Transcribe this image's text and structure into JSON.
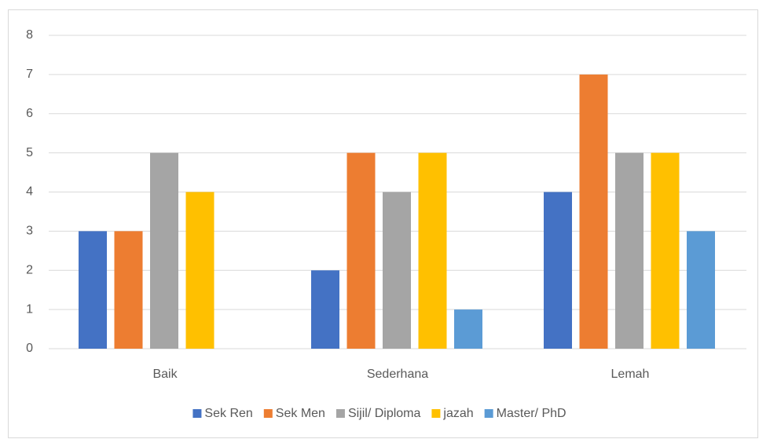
{
  "chart_data": {
    "type": "bar",
    "categories": [
      "Baik",
      "Sederhana",
      "Lemah"
    ],
    "series": [
      {
        "name": "Sek Ren",
        "color": "#4472c4",
        "values": [
          3,
          2,
          4
        ]
      },
      {
        "name": "Sek Men",
        "color": "#ed7d31",
        "values": [
          3,
          5,
          7
        ]
      },
      {
        "name": "Sijil/ Diploma",
        "color": "#a5a5a5",
        "values": [
          5,
          4,
          5
        ]
      },
      {
        "name": "jazah",
        "color": "#ffc000",
        "values": [
          4,
          5,
          5
        ]
      },
      {
        "name": "Master/ PhD",
        "color": "#5b9bd5",
        "values": [
          0,
          1,
          3
        ]
      }
    ],
    "ylim": [
      0,
      8
    ],
    "yticks": [
      0,
      1,
      2,
      3,
      4,
      5,
      6,
      7,
      8
    ],
    "grid": true,
    "legend": "bottom"
  }
}
